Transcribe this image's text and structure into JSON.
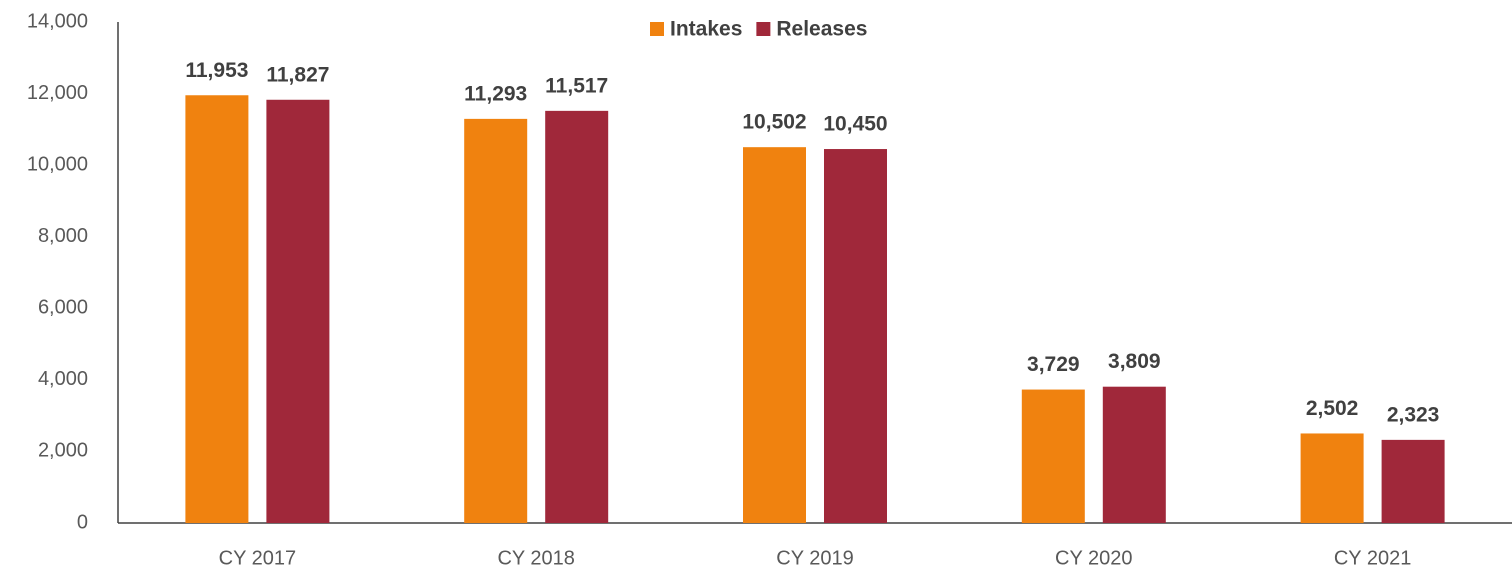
{
  "chart_data": {
    "type": "bar",
    "categories": [
      "CY 2017",
      "CY 2018",
      "CY 2019",
      "CY 2020",
      "CY 2021"
    ],
    "series": [
      {
        "name": "Intakes",
        "color": "#f0820f",
        "values": [
          11953,
          11293,
          10502,
          3729,
          2502
        ],
        "value_labels": [
          "11,953",
          "11,293",
          "10,502",
          "3,729",
          "2,502"
        ]
      },
      {
        "name": "Releases",
        "color": "#a0283a",
        "values": [
          11827,
          11517,
          10450,
          3809,
          2323
        ],
        "value_labels": [
          "11,827",
          "11,517",
          "10,450",
          "3,809",
          "2,323"
        ]
      }
    ],
    "ylim": [
      0,
      14000
    ],
    "yticks": [
      0,
      {
        "value": 2000,
        "label": "2,000"
      },
      {
        "value": 4000,
        "label": "4,000"
      },
      {
        "value": 6000,
        "label": "6,000"
      },
      {
        "value": 8000,
        "label": "8,000"
      },
      {
        "value": 10000,
        "label": "10,000"
      },
      {
        "value": 12000,
        "label": "12,000"
      },
      {
        "value": 14000,
        "label": "14,000"
      }
    ],
    "grid": false,
    "legend": "top"
  }
}
